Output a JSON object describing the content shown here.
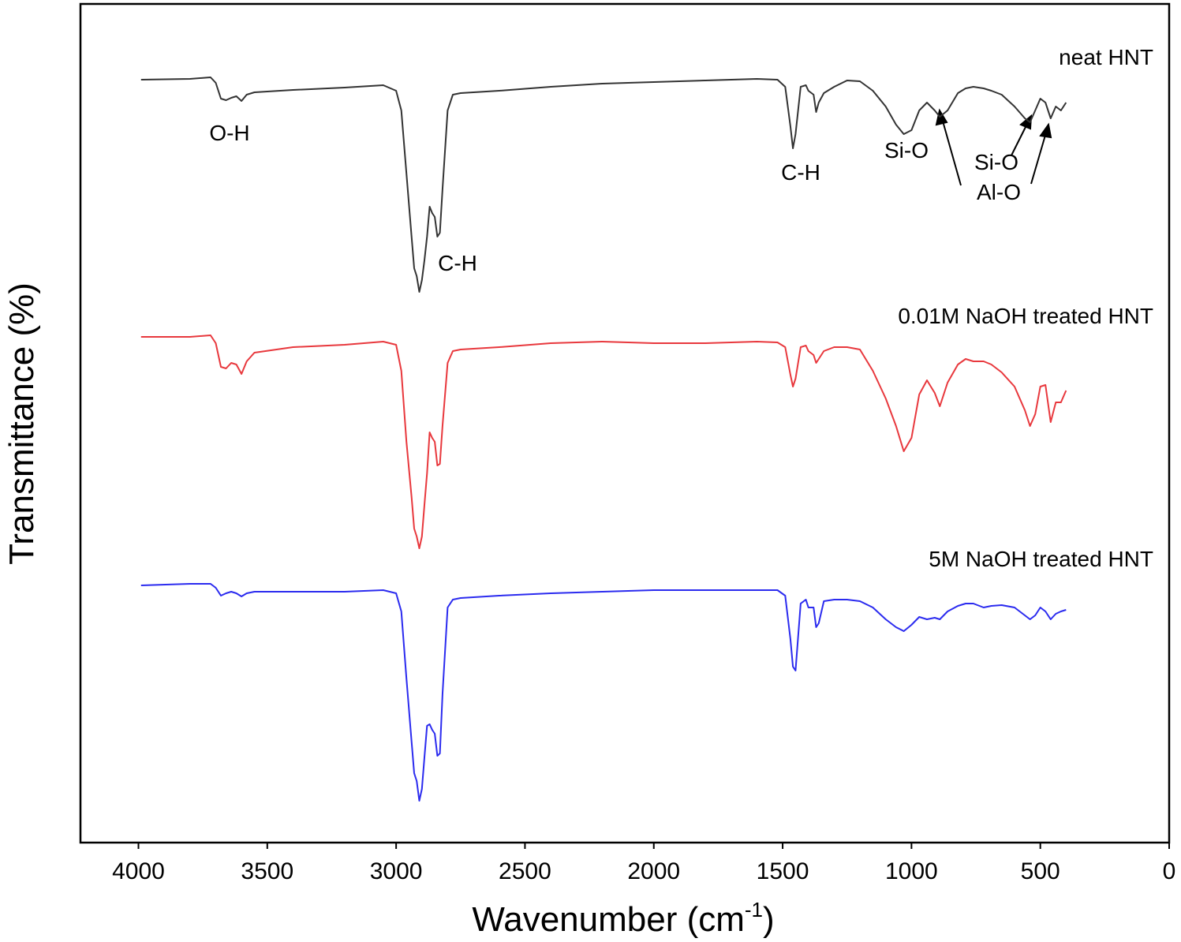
{
  "chart_data": {
    "type": "line",
    "xlabel": [
      "Wavenumber (cm",
      "-1",
      ")"
    ],
    "ylabel": "Transmittance (%)",
    "xlim": [
      4225,
      0
    ],
    "ylim": [
      0,
      1063
    ],
    "xticks": [
      4000,
      3500,
      3000,
      2500,
      2000,
      1500,
      1000,
      500,
      0
    ],
    "x": [
      3990,
      3800,
      3720,
      3700,
      3680,
      3660,
      3640,
      3620,
      3600,
      3580,
      3550,
      3400,
      3200,
      3050,
      3000,
      2980,
      2960,
      2940,
      2930,
      2920,
      2910,
      2900,
      2890,
      2880,
      2870,
      2860,
      2850,
      2840,
      2830,
      2820,
      2800,
      2780,
      2750,
      2600,
      2400,
      2200,
      2000,
      1800,
      1600,
      1520,
      1490,
      1470,
      1460,
      1450,
      1430,
      1410,
      1400,
      1380,
      1370,
      1360,
      1340,
      1300,
      1250,
      1200,
      1150,
      1100,
      1060,
      1030,
      1000,
      970,
      940,
      910,
      890,
      860,
      820,
      790,
      760,
      720,
      690,
      650,
      600,
      560,
      540,
      520,
      500,
      480,
      460,
      440,
      420,
      400
    ],
    "series": [
      {
        "name": "neat HNT",
        "color": "#333333",
        "values": [
          967,
          968,
          970,
          963,
          943,
          941,
          944,
          946,
          940,
          948,
          951,
          954,
          957,
          960,
          953,
          928,
          848,
          768,
          728,
          718,
          698,
          713,
          738,
          768,
          806,
          798,
          793,
          768,
          773,
          828,
          928,
          948,
          950,
          953,
          958,
          962,
          964,
          966,
          968,
          967,
          958,
          908,
          880,
          898,
          958,
          960,
          953,
          948,
          926,
          938,
          950,
          958,
          966,
          965,
          953,
          933,
          910,
          898,
          903,
          928,
          938,
          928,
          920,
          928,
          950,
          956,
          958,
          956,
          953,
          948,
          933,
          918,
          913,
          928,
          943,
          938,
          918,
          933,
          928,
          938
        ]
      },
      {
        "name": "0.01M NaOH treated HNT",
        "color": "#e8383d",
        "values": [
          641,
          641,
          643,
          633,
          603,
          601,
          608,
          606,
          594,
          610,
          621,
          628,
          631,
          635,
          631,
          598,
          508,
          438,
          398,
          388,
          373,
          388,
          428,
          468,
          520,
          513,
          508,
          478,
          480,
          528,
          608,
          623,
          625,
          628,
          633,
          635,
          633,
          633,
          635,
          634,
          628,
          593,
          578,
          588,
          628,
          630,
          623,
          618,
          608,
          613,
          623,
          628,
          628,
          625,
          598,
          563,
          528,
          496,
          513,
          568,
          586,
          570,
          553,
          583,
          606,
          613,
          610,
          610,
          606,
          596,
          578,
          548,
          528,
          543,
          578,
          580,
          533,
          558,
          558,
          573
        ]
      },
      {
        "name": "5M NaOH treated HNT",
        "color": "#2b2bef",
        "values": [
          326,
          328,
          328,
          323,
          313,
          316,
          318,
          316,
          312,
          316,
          318,
          318,
          318,
          320,
          316,
          293,
          208,
          128,
          88,
          78,
          53,
          68,
          108,
          148,
          150,
          143,
          138,
          110,
          113,
          188,
          298,
          308,
          310,
          313,
          316,
          318,
          320,
          320,
          320,
          320,
          313,
          258,
          223,
          218,
          303,
          308,
          298,
          298,
          273,
          278,
          306,
          308,
          308,
          306,
          298,
          283,
          273,
          268,
          276,
          286,
          283,
          285,
          283,
          293,
          300,
          303,
          303,
          298,
          300,
          301,
          298,
          288,
          283,
          288,
          298,
          293,
          283,
          290,
          293,
          295
        ]
      }
    ],
    "annotations": [
      "O-H",
      "C-H",
      "C-H",
      "Si-O",
      "Si-O",
      "Al-O"
    ]
  }
}
